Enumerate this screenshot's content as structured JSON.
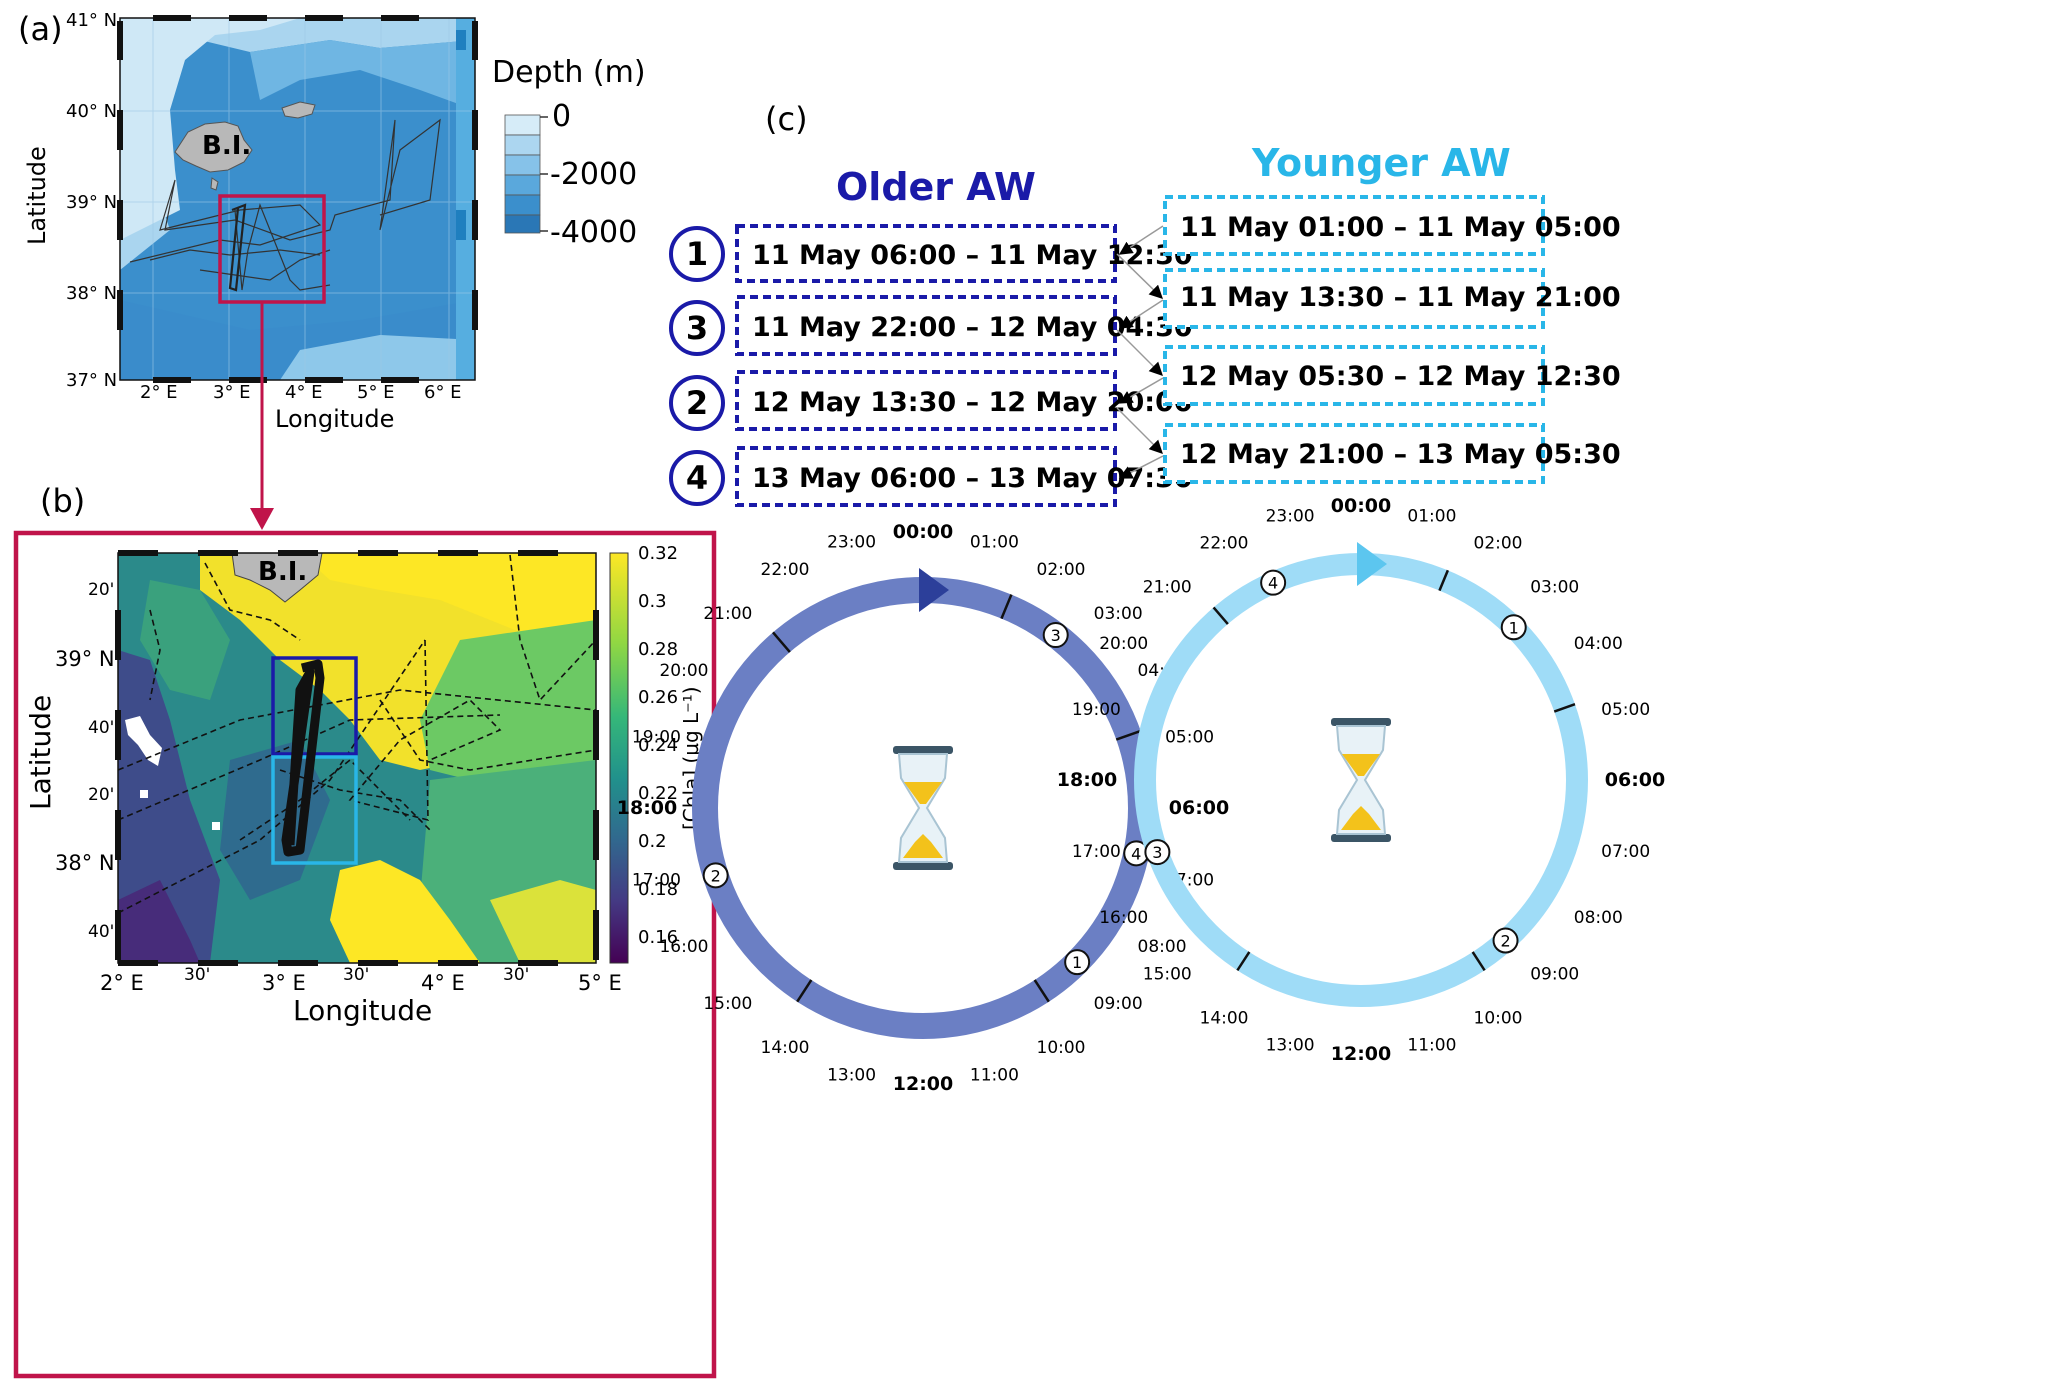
{
  "panels": {
    "a": "(a)",
    "b": "(b)",
    "c": "(c)"
  },
  "map_a": {
    "lat_ticks": [
      "41° N",
      "40° N",
      "39° N",
      "38° N",
      "37° N"
    ],
    "lon_ticks": [
      "2° E",
      "3° E",
      "4° E",
      "5° E",
      "6° E"
    ],
    "xlabel": "Longitude",
    "ylabel": "Latitude",
    "island_label": "B.I.",
    "colorbar_title": "Depth (m)",
    "colorbar_ticks": [
      "0",
      "-2000",
      "-4000"
    ],
    "colors": {
      "shallow": "#cfe8f6",
      "mid": "#5aa8dc",
      "deep": "#2f82c2",
      "highlight_box": "#c0144a"
    }
  },
  "map_b": {
    "lat_ticks": [
      "20'",
      "39° N",
      "40'",
      "20'",
      "38° N",
      "40'"
    ],
    "lon_ticks": [
      "2° E",
      "30'",
      "3° E",
      "30'",
      "4° E",
      "30'",
      "5° E"
    ],
    "xlabel": "Longitude",
    "ylabel": "Latitude",
    "island_label": "B.I.",
    "colorbar_label": "[Chla] (µg L⁻¹)",
    "colorbar_ticks": [
      "0.32",
      "0.3",
      "0.28",
      "0.26",
      "0.24",
      "0.22",
      "0.2",
      "0.18",
      "0.16"
    ],
    "colors": {
      "frame": "#c0144a",
      "older_box": "#1a1aa8",
      "younger_box": "#29b6e8"
    }
  },
  "legend_c": {
    "older_title": "Older AW",
    "younger_title": "Younger AW",
    "older_periods": [
      {
        "num": "1",
        "text": "11 May 06:00 – 11 May 12:30"
      },
      {
        "num": "3",
        "text": "11 May 22:00 – 12 May 04:30"
      },
      {
        "num": "2",
        "text": "12 May 13:30 – 12 May 20:00"
      },
      {
        "num": "4",
        "text": "13 May 06:00 – 13 May 07:30"
      }
    ],
    "younger_periods": [
      {
        "text": "11 May 01:00 – 11 May 05:00"
      },
      {
        "text": "11 May 13:30 – 11 May 21:00"
      },
      {
        "text": "12 May 05:30 – 12 May 12:30"
      },
      {
        "text": "12 May 21:00 – 13 May 05:30"
      }
    ],
    "colors": {
      "older": "#1a1aa8",
      "younger": "#29b6e8"
    }
  },
  "clocks": {
    "hours": [
      "00:00",
      "01:00",
      "02:00",
      "03:00",
      "04:00",
      "05:00",
      "06:00",
      "07:00",
      "08:00",
      "09:00",
      "10:00",
      "11:00",
      "12:00",
      "13:00",
      "14:00",
      "15:00",
      "16:00",
      "17:00",
      "18:00",
      "19:00",
      "20:00",
      "21:00",
      "22:00",
      "23:00"
    ],
    "older": {
      "ring_color": "#6b7fc4",
      "arrow_color": "#2c3f9a",
      "markers": [
        {
          "num": "3",
          "hour": 2.5
        },
        {
          "num": "4",
          "hour": 6.8
        },
        {
          "num": "1",
          "hour": 9.0
        },
        {
          "num": "2",
          "hour": 16.8
        }
      ]
    },
    "younger": {
      "ring_color": "#9fdcf7",
      "arrow_color": "#5cc6ef",
      "markers": [
        {
          "num": "4",
          "hour": 22.4
        },
        {
          "num": "1",
          "hour": 3.0
        },
        {
          "num": "2",
          "hour": 9.2
        },
        {
          "num": "3",
          "hour": 16.7
        }
      ]
    }
  }
}
